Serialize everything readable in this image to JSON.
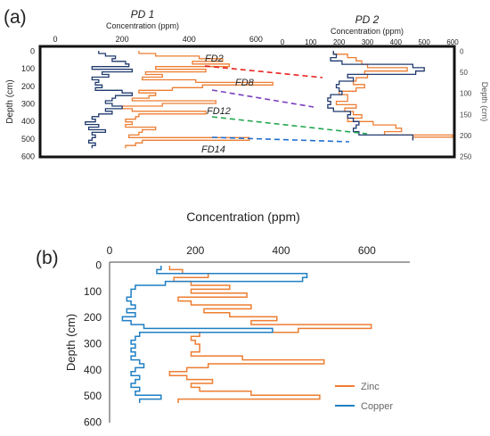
{
  "panels": {
    "a": {
      "label": "(a)"
    },
    "b": {
      "label": "(b)"
    }
  },
  "colors": {
    "zinc": "#ED7D31",
    "copper": "#1F3A6E",
    "copper_b": "#1F7FC4",
    "link_fd2": "#E8201F",
    "link_fd8": "#7B3FBF",
    "link_fd12": "#22A84F",
    "link_fd14": "#1F6FD0",
    "frame": "#111111"
  },
  "chart_data": [
    {
      "type": "line",
      "panel": "a-left",
      "title": "PD 1",
      "xlabel": "Concentration (ppm)",
      "ylabel": "Depth (cm)",
      "xlim": [
        0,
        700
      ],
      "ylim": [
        0,
        600
      ],
      "x_ticks": [
        "0",
        "200",
        "400",
        "600"
      ],
      "y_ticks": [
        "0",
        "100",
        "200",
        "300",
        "400",
        "500",
        "600"
      ],
      "depth_orientation": "increasing-downward",
      "series": [
        {
          "name": "Zinc",
          "depth": [
            0,
            15,
            30,
            45,
            60,
            75,
            90,
            105,
            120,
            135,
            150,
            165,
            180,
            195,
            210,
            225,
            240,
            255,
            270,
            285,
            300,
            315,
            330,
            345,
            360,
            375,
            390,
            405,
            420,
            435,
            450,
            465,
            480,
            495,
            510,
            525,
            540
          ],
          "concentration": [
            250,
            300,
            430,
            500,
            410,
            520,
            300,
            450,
            270,
            320,
            260,
            420,
            650,
            440,
            350,
            250,
            300,
            280,
            230,
            480,
            320,
            200,
            230,
            450,
            250,
            240,
            210,
            230,
            210,
            300,
            260,
            250,
            220,
            580,
            260,
            240,
            210
          ]
        },
        {
          "name": "Copper",
          "depth": [
            0,
            15,
            30,
            45,
            60,
            75,
            90,
            105,
            120,
            135,
            150,
            165,
            180,
            195,
            210,
            225,
            240,
            255,
            270,
            285,
            300,
            315,
            330,
            345,
            360,
            375,
            390,
            405,
            420,
            435,
            450,
            465,
            480,
            495,
            510,
            525,
            540
          ],
          "concentration": [
            130,
            150,
            180,
            170,
            210,
            220,
            110,
            230,
            140,
            160,
            110,
            130,
            120,
            140,
            120,
            200,
            230,
            180,
            170,
            150,
            170,
            200,
            150,
            170,
            130,
            110,
            120,
            90,
            130,
            100,
            150,
            110,
            120,
            110,
            100,
            120,
            110
          ]
        }
      ],
      "annotations": [
        "FD2",
        "FD8",
        "FD12",
        "FD14"
      ]
    },
    {
      "type": "line",
      "panel": "a-right",
      "title": "PD 2",
      "xlabel": "Concentration (ppm)",
      "ylabel": "Depth (cm)",
      "xlim": [
        0,
        600
      ],
      "ylim": [
        0,
        250
      ],
      "x_ticks": [
        "0",
        "100",
        "200",
        "300",
        "400",
        "500",
        "600"
      ],
      "y_ticks": [
        "0",
        "50",
        "100",
        "150",
        "200",
        "250"
      ],
      "depth_orientation": "increasing-downward",
      "series": [
        {
          "name": "Zinc",
          "depth": [
            0,
            8,
            16,
            24,
            32,
            40,
            48,
            56,
            64,
            72,
            80,
            88,
            96,
            104,
            112,
            120,
            128,
            136,
            144,
            152,
            160,
            168,
            176,
            184,
            192,
            200,
            205
          ],
          "concentration": [
            180,
            230,
            260,
            280,
            300,
            440,
            290,
            300,
            260,
            250,
            290,
            260,
            200,
            230,
            230,
            190,
            260,
            220,
            250,
            280,
            230,
            320,
            400,
            420,
            360,
            600,
            460
          ]
        },
        {
          "name": "Copper",
          "depth": [
            0,
            8,
            16,
            24,
            32,
            40,
            48,
            56,
            64,
            72,
            80,
            88,
            96,
            104,
            112,
            120,
            128,
            136,
            144,
            152,
            160,
            168,
            176,
            184,
            192,
            200,
            205
          ],
          "concentration": [
            180,
            190,
            170,
            210,
            460,
            500,
            470,
            230,
            250,
            200,
            190,
            200,
            210,
            170,
            160,
            170,
            160,
            180,
            240,
            230,
            250,
            270,
            260,
            250,
            270,
            460,
            460
          ]
        }
      ]
    },
    {
      "type": "line",
      "panel": "b",
      "title": "",
      "xlabel": "Concentration (ppm)",
      "ylabel": "Depth (cm)",
      "xlim": [
        0,
        700
      ],
      "ylim": [
        0,
        600
      ],
      "x_ticks": [
        "0",
        "200",
        "400",
        "600"
      ],
      "y_ticks": [
        "0",
        "100",
        "200",
        "300",
        "400",
        "500",
        "600"
      ],
      "depth_orientation": "increasing-downward",
      "legend_position": "bottom-right",
      "series": [
        {
          "name": "Zinc",
          "depth": [
            0,
            15,
            30,
            45,
            60,
            75,
            90,
            105,
            120,
            135,
            150,
            165,
            180,
            195,
            210,
            225,
            240,
            255,
            270,
            285,
            300,
            315,
            330,
            345,
            360,
            375,
            390,
            405,
            420,
            435,
            450,
            465,
            480,
            495,
            510
          ],
          "concentration": [
            140,
            170,
            230,
            150,
            190,
            280,
            190,
            320,
            160,
            190,
            330,
            220,
            280,
            390,
            330,
            610,
            440,
            210,
            190,
            200,
            210,
            210,
            190,
            310,
            500,
            230,
            180,
            140,
            180,
            240,
            190,
            210,
            330,
            490,
            160
          ]
        },
        {
          "name": "Copper",
          "depth": [
            0,
            15,
            30,
            45,
            60,
            75,
            90,
            105,
            120,
            135,
            150,
            165,
            180,
            195,
            210,
            225,
            240,
            255,
            270,
            285,
            300,
            315,
            330,
            345,
            360,
            375,
            390,
            405,
            420,
            435,
            450,
            465,
            480,
            495,
            510
          ],
          "concentration": [
            120,
            110,
            460,
            450,
            130,
            60,
            50,
            50,
            40,
            50,
            60,
            40,
            60,
            30,
            50,
            80,
            380,
            70,
            60,
            50,
            60,
            50,
            60,
            50,
            70,
            80,
            60,
            50,
            70,
            60,
            50,
            70,
            60,
            120,
            70
          ]
        }
      ]
    }
  ]
}
